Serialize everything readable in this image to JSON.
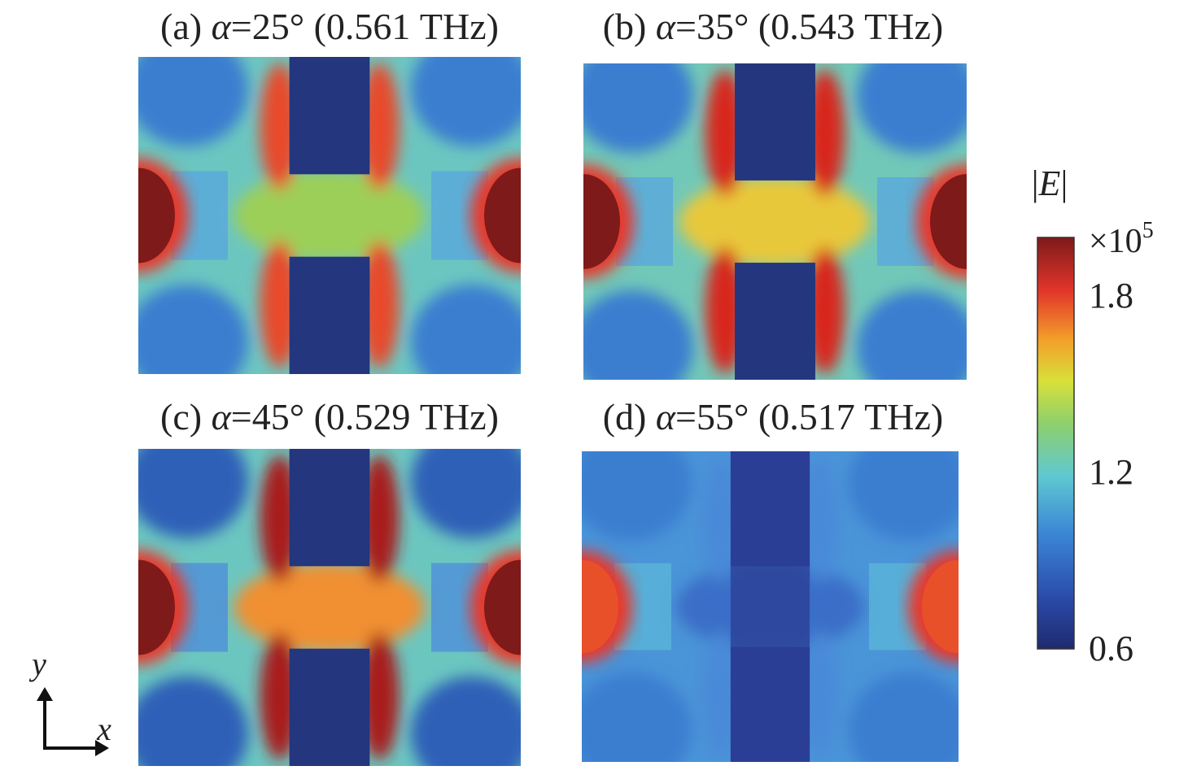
{
  "panels": [
    {
      "label": "(a)",
      "symbol": "α",
      "text": "=25° (0.561 THz)"
    },
    {
      "label": "(b)",
      "symbol": "α",
      "text": "=35° (0.543 THz)"
    },
    {
      "label": "(c)",
      "symbol": "α",
      "text": "=45° (0.529 THz)"
    },
    {
      "label": "(d)",
      "symbol": "α",
      "text": "=55° (0.517 THz)"
    }
  ],
  "colorbar": {
    "label_left": "|",
    "label_symbol": "E",
    "label_right": "|",
    "multiplier": "×10",
    "exponent": "5",
    "ticks": [
      "1.8",
      "1.2",
      "0.6"
    ]
  },
  "axes": {
    "y": "y",
    "x": "x"
  }
}
